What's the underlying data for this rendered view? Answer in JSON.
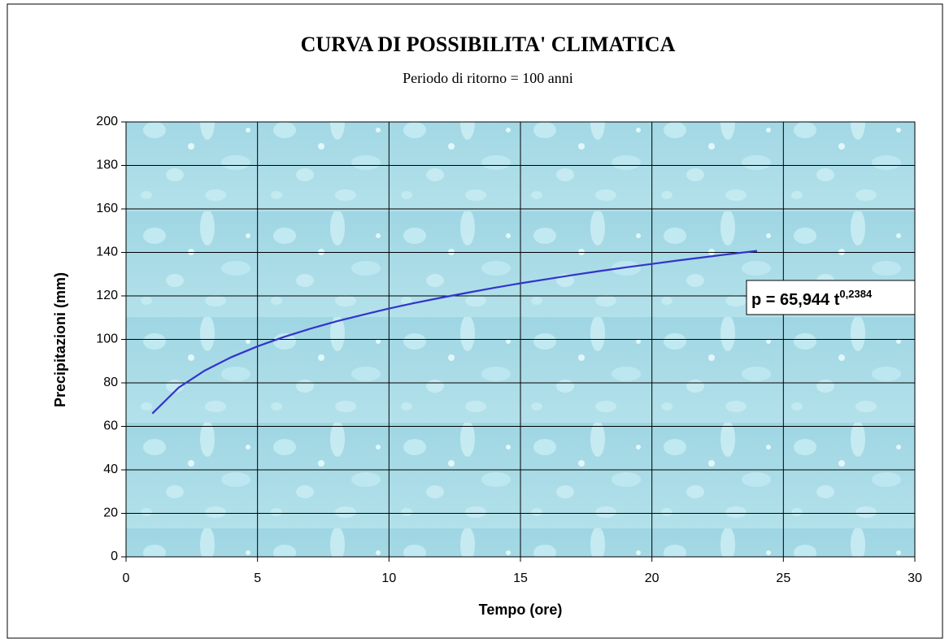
{
  "chart_data": {
    "type": "line",
    "title": "CURVA DI POSSIBILITA' CLIMATICA",
    "subtitle": "Periodo di ritorno = 100 anni",
    "x_label": "Tempo (ore)",
    "y_label": "Precipitazioni (mm)",
    "annotation": {
      "text": "p = 65,944 t",
      "exponent": "0,2384"
    },
    "x": [
      1,
      2,
      3,
      4,
      5,
      6,
      7,
      8,
      9,
      10,
      11,
      12,
      13,
      14,
      15,
      16,
      17,
      18,
      19,
      20,
      21,
      22,
      23,
      24
    ],
    "series": [
      {
        "color": "#3333cc",
        "values": [
          65.9,
          77.8,
          85.7,
          91.8,
          96.8,
          101.1,
          104.9,
          108.3,
          111.3,
          114.2,
          116.8,
          119.2,
          121.5,
          123.7,
          125.8,
          127.7,
          129.6,
          131.4,
          133.1,
          134.7,
          136.3,
          137.8,
          139.3,
          140.7
        ]
      }
    ],
    "xlim": [
      0,
      30
    ],
    "xticks": [
      0,
      5,
      10,
      15,
      20,
      25,
      30
    ],
    "ylim": [
      0,
      200
    ],
    "yticks": [
      0,
      20,
      40,
      60,
      80,
      100,
      120,
      140,
      160,
      180,
      200
    ],
    "grid": true
  }
}
